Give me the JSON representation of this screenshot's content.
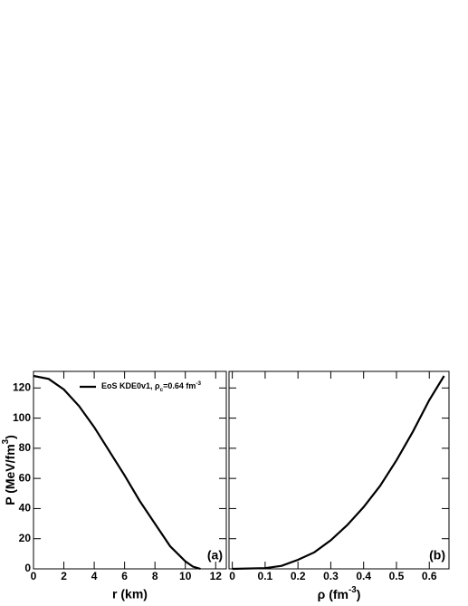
{
  "chart_data": [
    {
      "type": "line",
      "panel_label": "(a)",
      "x_label": "r (km)",
      "y_label": [
        "P (MeV/fm",
        "3",
        ")"
      ],
      "xlim": [
        0,
        12.7
      ],
      "xticks": [
        0,
        2,
        4,
        6,
        8,
        10,
        12
      ],
      "ylim": [
        0,
        131
      ],
      "yticks": [
        0,
        20,
        40,
        60,
        80,
        100,
        120
      ],
      "series": [
        {
          "name": [
            "EoS KDE0v1, ρ",
            "c",
            "=0.64 fm",
            "-3"
          ],
          "color": "#000000",
          "x": [
            0,
            1,
            2,
            3,
            4,
            5,
            6,
            7,
            8,
            9,
            10,
            10.5,
            11
          ],
          "values": [
            128,
            126,
            119,
            108,
            94,
            78,
            62,
            45,
            30,
            15,
            5,
            1.5,
            0
          ]
        }
      ]
    },
    {
      "type": "line",
      "panel_label": "(b)",
      "x_label": [
        "ρ (fm",
        "-3",
        ")"
      ],
      "xlim": [
        -0.01,
        0.66
      ],
      "xticks": [
        0,
        0.1,
        0.2,
        0.3,
        0.4,
        0.5,
        0.6
      ],
      "ylim": [
        0,
        131
      ],
      "yticks": [
        0,
        20,
        40,
        60,
        80,
        100,
        120
      ],
      "series": [
        {
          "color": "#000000",
          "x": [
            0,
            0.1,
            0.15,
            0.2,
            0.25,
            0.3,
            0.35,
            0.4,
            0.45,
            0.5,
            0.55,
            0.6,
            0.645
          ],
          "values": [
            0,
            0.5,
            2,
            6,
            11,
            19,
            29,
            41,
            55,
            72,
            91,
            112,
            128
          ]
        }
      ]
    }
  ]
}
